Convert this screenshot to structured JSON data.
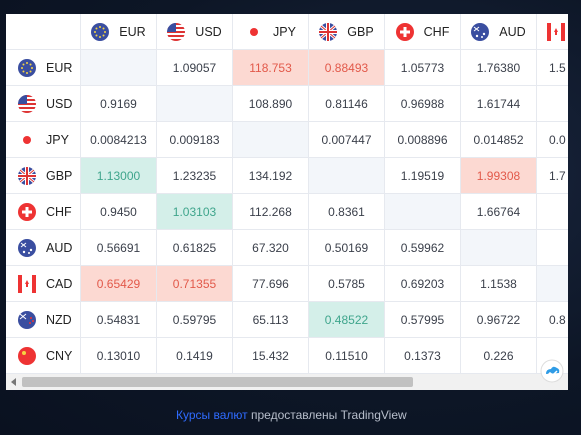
{
  "table": {
    "columns": [
      "EUR",
      "USD",
      "JPY",
      "GBP",
      "CHF",
      "AUD",
      "CAD"
    ],
    "rows": [
      {
        "label": "EUR",
        "cells": [
          null,
          "1.09057",
          "118.753",
          "0.88493",
          "1.05773",
          "1.76380",
          "1.5"
        ],
        "down": [
          2,
          3
        ],
        "up": []
      },
      {
        "label": "USD",
        "cells": [
          "0.9169",
          null,
          "108.890",
          "0.81146",
          "0.96988",
          "1.61744",
          null
        ],
        "down": [],
        "up": []
      },
      {
        "label": "JPY",
        "cells": [
          "0.0084213",
          "0.009183",
          null,
          "0.007447",
          "0.008896",
          "0.014852",
          "0.0"
        ],
        "down": [],
        "up": []
      },
      {
        "label": "GBP",
        "cells": [
          "1.13000",
          "1.23235",
          "134.192",
          null,
          "1.19519",
          "1.99308",
          "1.7"
        ],
        "down": [
          5
        ],
        "up": [
          0
        ]
      },
      {
        "label": "CHF",
        "cells": [
          "0.9450",
          "1.03103",
          "112.268",
          "0.8361",
          null,
          "1.66764",
          null
        ],
        "down": [],
        "up": [
          1
        ]
      },
      {
        "label": "AUD",
        "cells": [
          "0.56691",
          "0.61825",
          "67.320",
          "0.50169",
          "0.59962",
          null,
          null
        ],
        "down": [],
        "up": []
      },
      {
        "label": "CAD",
        "cells": [
          "0.65429",
          "0.71355",
          "77.696",
          "0.5785",
          "0.69203",
          "1.1538",
          null
        ],
        "down": [
          0,
          1
        ],
        "up": []
      },
      {
        "label": "NZD",
        "cells": [
          "0.54831",
          "0.59795",
          "65.113",
          "0.48522",
          "0.57995",
          "0.96722",
          "0.8"
        ],
        "down": [],
        "up": [
          3
        ]
      },
      {
        "label": "CNY",
        "cells": [
          "0.13010",
          "0.1419",
          "15.432",
          "0.11510",
          "0.1373",
          "0.226",
          null
        ],
        "down": [],
        "up": []
      }
    ]
  },
  "footer": {
    "link": "Курсы валют",
    "text": "предоставлены TradingView"
  }
}
